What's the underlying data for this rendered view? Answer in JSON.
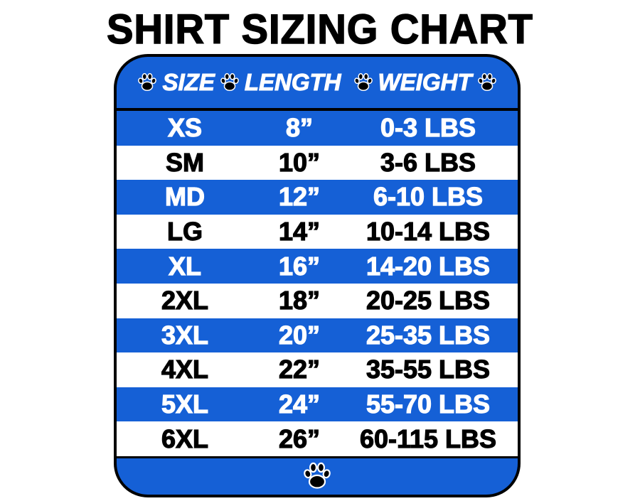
{
  "title": "SHIRT SIZING CHART",
  "colors": {
    "blue": "#1560d6",
    "white": "#ffffff",
    "border": "#000000"
  },
  "icon": "paw-print-icon",
  "headers": [
    "SIZE",
    "LENGTH",
    "WEIGHT"
  ],
  "rows": [
    {
      "size": "XS",
      "length": "8”",
      "weight": "0-3 LBS"
    },
    {
      "size": "SM",
      "length": "10”",
      "weight": "3-6 LBS"
    },
    {
      "size": "MD",
      "length": "12”",
      "weight": "6-10 LBS"
    },
    {
      "size": "LG",
      "length": "14”",
      "weight": "10-14 LBS"
    },
    {
      "size": "XL",
      "length": "16”",
      "weight": "14-20 LBS"
    },
    {
      "size": "2XL",
      "length": "18”",
      "weight": "20-25 LBS"
    },
    {
      "size": "3XL",
      "length": "20”",
      "weight": "25-35 LBS"
    },
    {
      "size": "4XL",
      "length": "22”",
      "weight": "35-55 LBS"
    },
    {
      "size": "5XL",
      "length": "24”",
      "weight": "55-70 LBS"
    },
    {
      "size": "6XL",
      "length": "26”",
      "weight": "60-115 LBS"
    }
  ]
}
